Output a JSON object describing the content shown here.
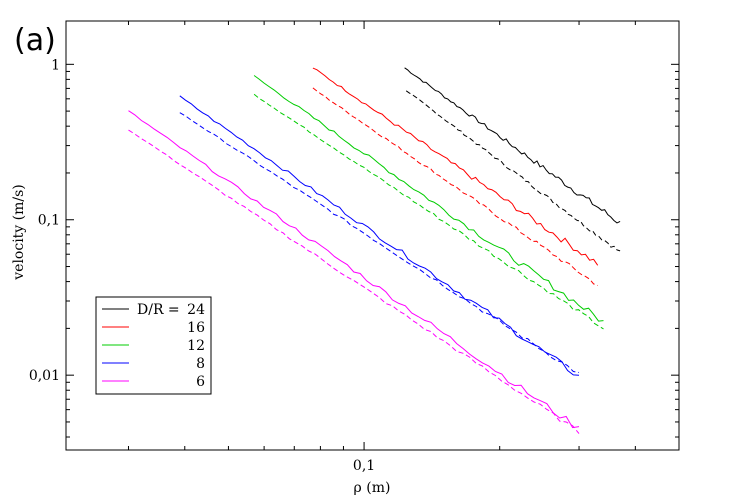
{
  "panel_label": "(a)",
  "chart_data": {
    "type": "line",
    "xscale": "log",
    "yscale": "log",
    "xlabel": "ρ (m)",
    "ylabel": "velocity (m/s)",
    "xlim": [
      0.0218,
      0.5
    ],
    "ylim": [
      0.0033,
      1.9
    ],
    "xticks_labeled": [
      {
        "value": 0.1,
        "label": "0,1"
      }
    ],
    "yticks_labeled": [
      {
        "value": 1,
        "label": "1"
      },
      {
        "value": 0.1,
        "label": "0,1"
      },
      {
        "value": 0.01,
        "label": "0,01"
      }
    ],
    "grid": false,
    "legend_position": "bottom-left",
    "legend_title": "D/R = ",
    "series": [
      {
        "name": "24",
        "color": "#000000",
        "solid": {
          "x": [
            0.123,
            0.37
          ],
          "y": [
            0.95,
            0.095
          ]
        },
        "dashed": {
          "x": [
            0.124,
            0.37
          ],
          "y": [
            0.68,
            0.062
          ]
        }
      },
      {
        "name": "16",
        "color": "#ff0000",
        "solid": {
          "x": [
            0.077,
            0.33
          ],
          "y": [
            0.95,
            0.052
          ]
        },
        "dashed": {
          "x": [
            0.077,
            0.33
          ],
          "y": [
            0.7,
            0.038
          ]
        }
      },
      {
        "name": "12",
        "color": "#00cc00",
        "solid": {
          "x": [
            0.057,
            0.34
          ],
          "y": [
            0.84,
            0.022
          ]
        },
        "dashed": {
          "x": [
            0.057,
            0.34
          ],
          "y": [
            0.64,
            0.02
          ]
        }
      },
      {
        "name": "8",
        "color": "#0000ff",
        "solid": {
          "x": [
            0.039,
            0.3
          ],
          "y": [
            0.62,
            0.0098
          ]
        },
        "dashed": {
          "x": [
            0.039,
            0.3
          ],
          "y": [
            0.49,
            0.0102
          ]
        }
      },
      {
        "name": "6",
        "color": "#ff00ff",
        "solid": {
          "x": [
            0.03,
            0.3
          ],
          "y": [
            0.5,
            0.0045
          ]
        },
        "dashed": {
          "x": [
            0.03,
            0.3
          ],
          "y": [
            0.38,
            0.0043
          ]
        }
      }
    ]
  }
}
